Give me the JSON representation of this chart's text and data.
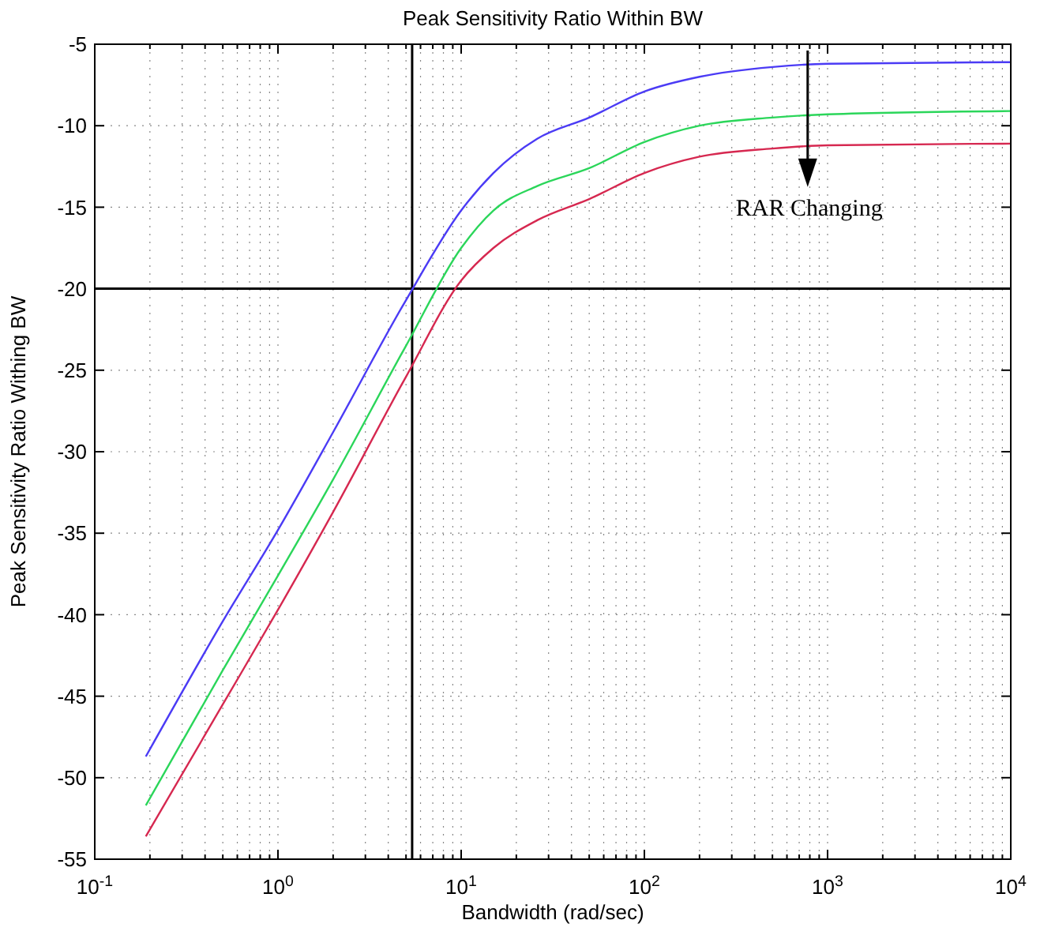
{
  "chart_data": {
    "type": "line",
    "title": "Peak Sensitivity Ratio Within BW",
    "xlabel": "Bandwidth (rad/sec)",
    "ylabel": "Peak Sensitivity Ratio Withing BW",
    "log": "x",
    "grid": true,
    "line_style": "solid",
    "marker": "none",
    "xlim": [
      0.1,
      10000
    ],
    "xticks": [
      {
        "value": 0.1,
        "label": "10$^{-1}$"
      },
      {
        "value": 1,
        "label": "10$^{0}$"
      },
      {
        "value": 10,
        "label": "10$^{1}$"
      },
      {
        "value": 100,
        "label": "10$^{2}$"
      },
      {
        "value": 1000,
        "label": "10$^{3}$"
      },
      {
        "value": 10000,
        "label": "10$^{4}$"
      }
    ],
    "ylim": [
      -55,
      -5
    ],
    "yticks": [
      -55,
      -50,
      -45,
      -40,
      -35,
      -30,
      -25,
      -20,
      -15,
      -10,
      -5
    ],
    "x": [
      0.19,
      0.5,
      1,
      2,
      5,
      10,
      15,
      26,
      50,
      100,
      200,
      500,
      1000,
      10000
    ],
    "series": [
      {
        "color": "#4b3bf5",
        "values": [
          -48.7,
          -40.4,
          -34.8,
          -28.8,
          -20.7,
          -15.2,
          -12.9,
          -10.8,
          -9.5,
          -7.9,
          -7.0,
          -6.4,
          -6.2,
          -6.1
        ]
      },
      {
        "color": "#2bd65a",
        "values": [
          -51.7,
          -43.4,
          -37.6,
          -31.7,
          -23.5,
          -17.5,
          -15.2,
          -13.7,
          -12.6,
          -11.0,
          -10.0,
          -9.5,
          -9.3,
          -9.1
        ]
      },
      {
        "color": "#d62850",
        "values": [
          -53.6,
          -45.5,
          -39.7,
          -33.7,
          -25.4,
          -19.5,
          -17.5,
          -15.8,
          -14.5,
          -12.9,
          -11.9,
          -11.4,
          -11.2,
          -11.1
        ]
      }
    ],
    "ref_lines": [
      {
        "axis": "x",
        "value": 5.4,
        "color": "#000000"
      },
      {
        "axis": "y",
        "value": -20,
        "color": "#000000"
      }
    ],
    "annotations": [
      "RAR Changing"
    ]
  }
}
